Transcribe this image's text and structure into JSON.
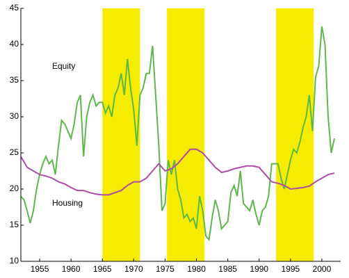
{
  "chart_data": {
    "type": "line",
    "annotations": [
      "Equity",
      "Housing"
    ],
    "shaded_regions": [
      [
        1965,
        1971
      ],
      [
        1975.3,
        1981.3
      ],
      [
        1992.7,
        1998.7
      ]
    ],
    "shade_color": "#f5ec00",
    "xlim": [
      1952,
      2003
    ],
    "ylim": [
      10,
      45
    ],
    "xticks": [
      1955,
      1960,
      1965,
      1970,
      1975,
      1980,
      1985,
      1990,
      1995,
      2000
    ],
    "yticks": [
      10,
      15,
      20,
      25,
      30,
      35,
      40,
      45
    ],
    "series": [
      {
        "name": "Equity",
        "color": "#5cb84a",
        "x": [
          1952,
          1952.5,
          1953,
          1953.5,
          1954,
          1954.5,
          1955,
          1955.5,
          1956,
          1956.5,
          1957,
          1957.5,
          1958,
          1958.5,
          1959,
          1959.5,
          1960,
          1960.5,
          1961,
          1961.5,
          1962,
          1962.5,
          1963,
          1963.5,
          1964,
          1964.5,
          1965,
          1965.5,
          1966,
          1966.5,
          1967,
          1967.5,
          1968,
          1968.5,
          1969,
          1969.5,
          1970,
          1970.5,
          1971,
          1971.5,
          1972,
          1972.5,
          1973,
          1973.5,
          1974,
          1974.5,
          1975,
          1975.5,
          1976,
          1976.5,
          1977,
          1977.5,
          1978,
          1978.5,
          1979,
          1979.5,
          1980,
          1980.5,
          1981,
          1981.5,
          1982,
          1982.5,
          1983,
          1983.5,
          1984,
          1984.5,
          1985,
          1985.5,
          1986,
          1986.5,
          1987,
          1987.5,
          1988,
          1988.5,
          1989,
          1989.5,
          1990,
          1990.5,
          1991,
          1991.5,
          1992,
          1992.5,
          1993,
          1993.5,
          1994,
          1994.5,
          1995,
          1995.5,
          1996,
          1996.5,
          1997,
          1997.5,
          1998,
          1998.5,
          1999,
          1999.5,
          2000,
          2000.5,
          2001,
          2001.5,
          2002
        ],
        "values": [
          19,
          18.5,
          17,
          15.3,
          17,
          20,
          22,
          23.5,
          24.5,
          23.5,
          24,
          22,
          26,
          29.5,
          29,
          28,
          27,
          29,
          32,
          33,
          24.5,
          30,
          32,
          33,
          31.5,
          32,
          32,
          30.5,
          31.5,
          30,
          33,
          34,
          36,
          33,
          38,
          34,
          31,
          26,
          33,
          34,
          36,
          36,
          39.8,
          33,
          26,
          17,
          18,
          24,
          22,
          24,
          20,
          18.5,
          16,
          16.5,
          15.5,
          16,
          14.5,
          19,
          17,
          13.5,
          13,
          16,
          18.5,
          17,
          14.5,
          15,
          15.5,
          19.5,
          20.5,
          19,
          22.5,
          18,
          17.5,
          17,
          18.5,
          16.5,
          15,
          17,
          17.5,
          19,
          23.5,
          23.5,
          23.5,
          21.5,
          20,
          22,
          24,
          25.5,
          25,
          26.5,
          28.5,
          30,
          33,
          28,
          35.5,
          37,
          42.5,
          40,
          30,
          25,
          27
        ]
      },
      {
        "name": "Housing",
        "color": "#b04aa8",
        "x": [
          1952,
          1953,
          1954,
          1955,
          1956,
          1957,
          1958,
          1959,
          1960,
          1961,
          1962,
          1963,
          1964,
          1965,
          1966,
          1967,
          1968,
          1969,
          1970,
          1971,
          1972,
          1973,
          1974,
          1975,
          1976,
          1977,
          1978,
          1979,
          1980,
          1981,
          1982,
          1983,
          1984,
          1985,
          1986,
          1987,
          1988,
          1989,
          1990,
          1991,
          1992,
          1993,
          1994,
          1995,
          1996,
          1997,
          1998,
          1999,
          2000,
          2001,
          2002
        ],
        "values": [
          24.5,
          23,
          22.5,
          22,
          21.8,
          21.5,
          21,
          20.7,
          20.2,
          19.8,
          19.8,
          19.5,
          19.3,
          19.2,
          19.2,
          19.5,
          19.8,
          20.5,
          21,
          21,
          21.5,
          22.5,
          23.5,
          22.5,
          22.8,
          23.5,
          24.5,
          25.5,
          25.5,
          25,
          24,
          23,
          22.3,
          22.5,
          22.8,
          23,
          23.2,
          23.2,
          23,
          22,
          21,
          20.8,
          20.5,
          20,
          20.1,
          20.2,
          20.4,
          21,
          21.5,
          22,
          22.2
        ]
      }
    ]
  }
}
